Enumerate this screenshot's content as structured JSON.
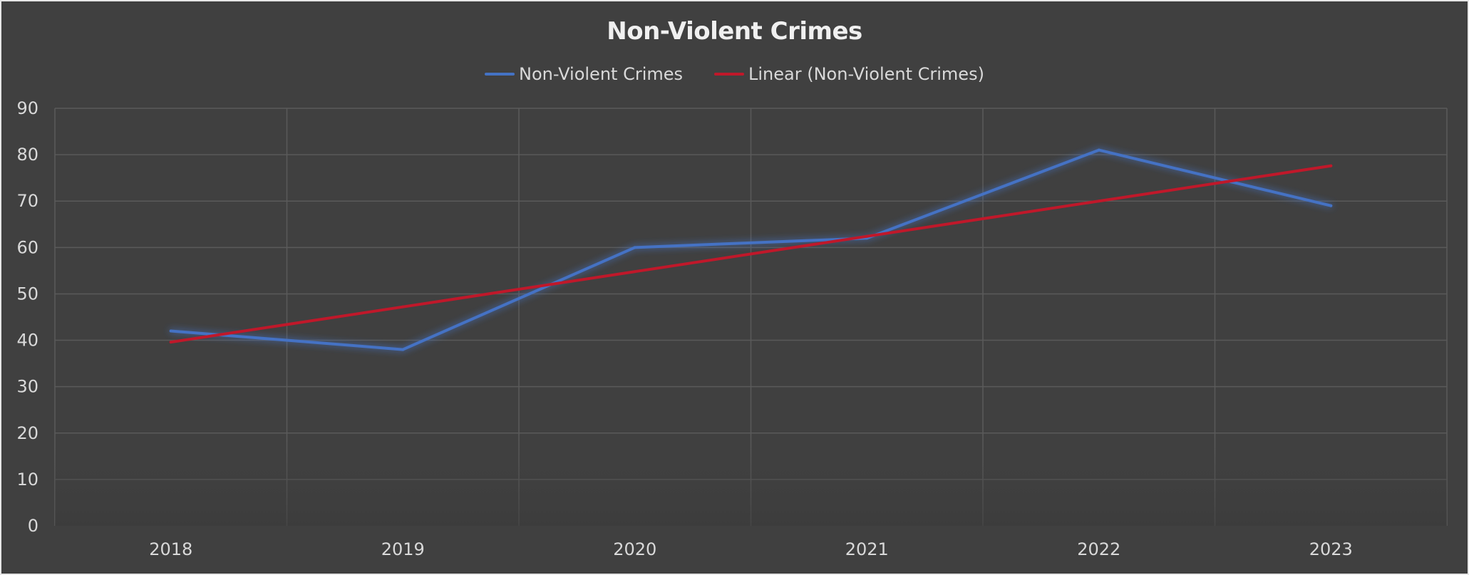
{
  "chart_data": {
    "type": "line",
    "title": "Non-Violent Crimes",
    "xlabel": "",
    "ylabel": "",
    "categories": [
      "2018",
      "2019",
      "2020",
      "2021",
      "2022",
      "2023"
    ],
    "ylim": [
      0,
      90
    ],
    "yticks": [
      0,
      10,
      20,
      30,
      40,
      50,
      60,
      70,
      80,
      90
    ],
    "grid": true,
    "legend_position": "top",
    "series": [
      {
        "name": "Non-Violent Crimes",
        "values": [
          42,
          38,
          60,
          62,
          81,
          69
        ],
        "color": "#4472c4",
        "glow": true
      },
      {
        "name": "Linear (Non-Violent Crimes)",
        "values": [
          39.6,
          47.2,
          54.8,
          62.4,
          70.0,
          77.6
        ],
        "color": "#c0182a",
        "trendline": true
      }
    ],
    "colors": {
      "background": "#404040",
      "gridline": "#5a5a5a",
      "text": "#d9d9d9",
      "title": "#f0f0f0"
    }
  }
}
